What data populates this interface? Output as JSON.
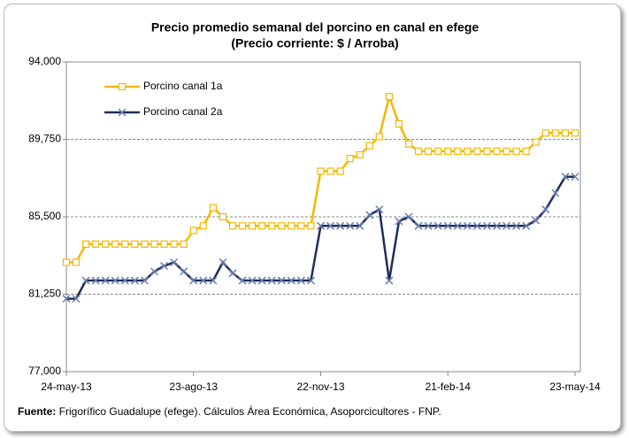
{
  "chart_data": {
    "type": "line",
    "title": "Precio promedio semanal del porcino en canal en efege",
    "subtitle": "(Precio corriente: $ / Arroba)",
    "categories": [
      "24-may-13",
      null,
      null,
      null,
      null,
      null,
      null,
      null,
      null,
      null,
      null,
      null,
      null,
      "23-ago-13",
      null,
      null,
      null,
      null,
      null,
      null,
      null,
      null,
      null,
      null,
      null,
      null,
      "22-nov-13",
      null,
      null,
      null,
      null,
      null,
      null,
      null,
      null,
      null,
      null,
      null,
      null,
      "21-feb-14",
      null,
      null,
      null,
      null,
      null,
      null,
      null,
      null,
      null,
      null,
      null,
      null,
      "23-may-14"
    ],
    "series": [
      {
        "name": "Porcino canal 1a",
        "color": "#f5b800",
        "marker": "square",
        "values": [
          83000,
          83000,
          84000,
          84000,
          84000,
          84000,
          84000,
          84000,
          84000,
          84000,
          84000,
          84000,
          84000,
          84750,
          85000,
          86000,
          85500,
          85000,
          85000,
          85000,
          85000,
          85000,
          85000,
          85000,
          85000,
          85000,
          88000,
          88000,
          88000,
          88700,
          88900,
          89400,
          89900,
          92100,
          90600,
          89500,
          89100,
          89100,
          89100,
          89100,
          89100,
          89100,
          89100,
          89100,
          89100,
          89100,
          89100,
          89100,
          89600,
          90100,
          90100,
          90100,
          90100
        ]
      },
      {
        "name": "Porcino canal 2a",
        "color": "#1f2d5a",
        "marker": "x",
        "values": [
          81000,
          81000,
          82000,
          82000,
          82000,
          82000,
          82000,
          82000,
          82000,
          82500,
          82800,
          83000,
          82500,
          82000,
          82000,
          82000,
          83000,
          82400,
          82000,
          82000,
          82000,
          82000,
          82000,
          82000,
          82000,
          82000,
          85000,
          85000,
          85000,
          85000,
          85000,
          85600,
          85900,
          82000,
          85250,
          85500,
          85000,
          85000,
          85000,
          85000,
          85000,
          85000,
          85000,
          85000,
          85000,
          85000,
          85000,
          85000,
          85300,
          85900,
          86800,
          87700,
          87700
        ]
      }
    ],
    "ylim": [
      77000,
      94000
    ],
    "yticks": [
      {
        "value": 77000,
        "label": "77,000"
      },
      {
        "value": 81250,
        "label": "81,250"
      },
      {
        "value": 85500,
        "label": "85,500"
      },
      {
        "value": 89750,
        "label": "89,750"
      },
      {
        "value": 94000,
        "label": "94,000"
      }
    ],
    "grid": true,
    "legend": "upper left",
    "source_label": "Fuente:",
    "source": "Frigorífico Guadalupe (efege). Cálculos Área Económica, Asoporcicultores - FNP."
  }
}
